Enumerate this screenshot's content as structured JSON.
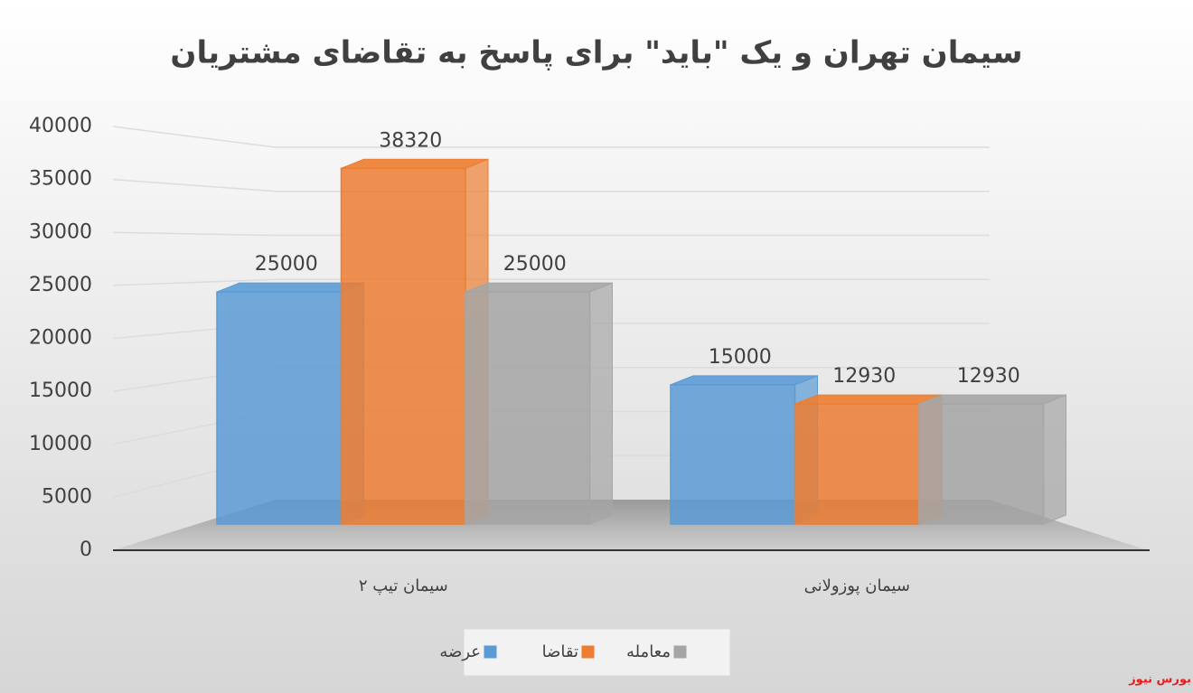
{
  "chart_data": {
    "type": "bar3d",
    "title": "سیمان تهران و یک \"باید\" برای پاسخ به تقاضای مشتریان",
    "categories": [
      "سیمان تیپ ۲",
      "سیمان پوزولانی"
    ],
    "series": [
      {
        "name": "عرضه",
        "color": "#5b9bd5",
        "values": [
          25000,
          15000
        ]
      },
      {
        "name": "تقاضا",
        "color": "#ed7d31",
        "values": [
          38320,
          12930
        ]
      },
      {
        "name": "معامله",
        "color": "#a5a5a5",
        "values": [
          25000,
          12930
        ]
      }
    ],
    "ylim": [
      0,
      40000
    ],
    "yticks": [
      0,
      5000,
      10000,
      15000,
      20000,
      25000,
      30000,
      35000,
      40000
    ],
    "grid": true,
    "legend": "bottom",
    "watermark": "بورس نیوز"
  }
}
